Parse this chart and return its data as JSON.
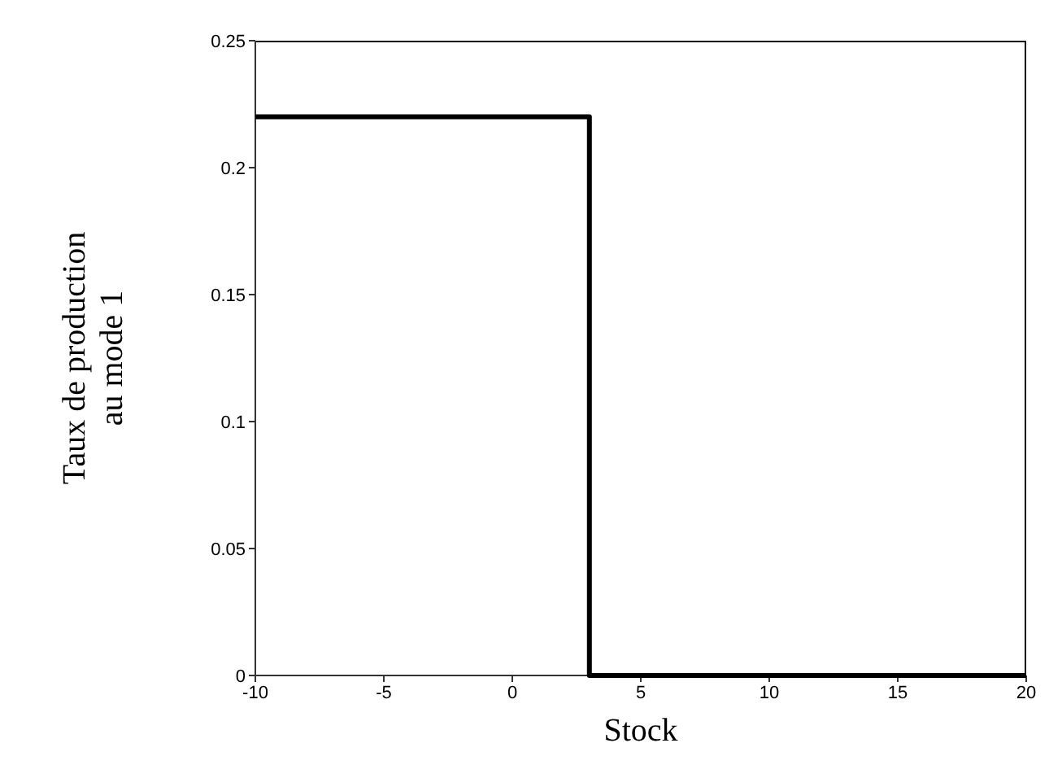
{
  "chart_data": {
    "type": "step",
    "xlabel": "Stock",
    "ylabel": "Taux de production\nau mode 1",
    "x": [
      -10,
      3,
      20
    ],
    "series": [
      {
        "color": "#000000",
        "values": [
          0.22,
          0,
          0
        ]
      }
    ],
    "xlim": [
      -10,
      20
    ],
    "xticks": [
      -10,
      -5,
      0,
      5,
      10,
      15,
      20
    ],
    "ylim": [
      0,
      0.25
    ],
    "yticks": [
      0,
      0.05,
      0.1,
      0.15,
      0.2,
      0.25
    ],
    "marker": "none",
    "line_style": "solid"
  }
}
